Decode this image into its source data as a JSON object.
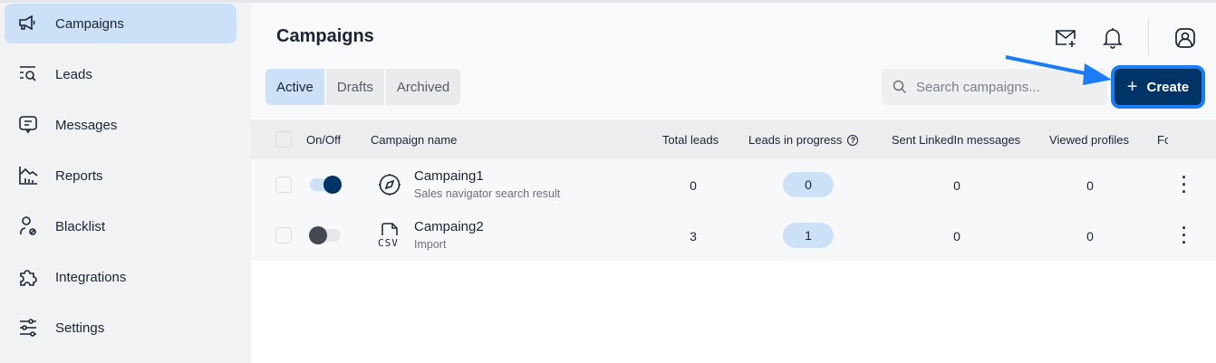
{
  "sidebar": {
    "items": [
      {
        "label": "Campaigns",
        "icon": "megaphone-icon",
        "active": true
      },
      {
        "label": "Leads",
        "icon": "list-search-icon"
      },
      {
        "label": "Messages",
        "icon": "message-icon"
      },
      {
        "label": "Reports",
        "icon": "chart-icon"
      },
      {
        "label": "Blacklist",
        "icon": "user-blocked-icon"
      },
      {
        "label": "Integrations",
        "icon": "puzzle-icon"
      },
      {
        "label": "Settings",
        "icon": "sliders-icon"
      }
    ]
  },
  "header": {
    "title": "Campaigns"
  },
  "tabs": [
    {
      "label": "Active",
      "active": true
    },
    {
      "label": "Drafts"
    },
    {
      "label": "Archived"
    }
  ],
  "search": {
    "placeholder": "Search campaigns...",
    "value": ""
  },
  "create_label": "Create",
  "colors": {
    "accent": "#003366",
    "highlight": "#1b7cf5",
    "active_bg": "#cce0f7"
  },
  "table": {
    "columns": [
      "On/Off",
      "Campaign name",
      "Total leads",
      "Leads in progress",
      "Sent LinkedIn messages",
      "Viewed profiles",
      "Fo"
    ],
    "rows": [
      {
        "on": true,
        "name": "Campaing1",
        "source": "Sales navigator search result",
        "icon": "compass-icon",
        "total": "0",
        "progress": "0",
        "sent": "0",
        "viewed": "0"
      },
      {
        "on": false,
        "name": "Campaing2",
        "source": "Import",
        "icon": "csv-file-icon",
        "icon_text": "CSV",
        "total": "3",
        "progress": "1",
        "sent": "0",
        "viewed": "0"
      }
    ]
  }
}
